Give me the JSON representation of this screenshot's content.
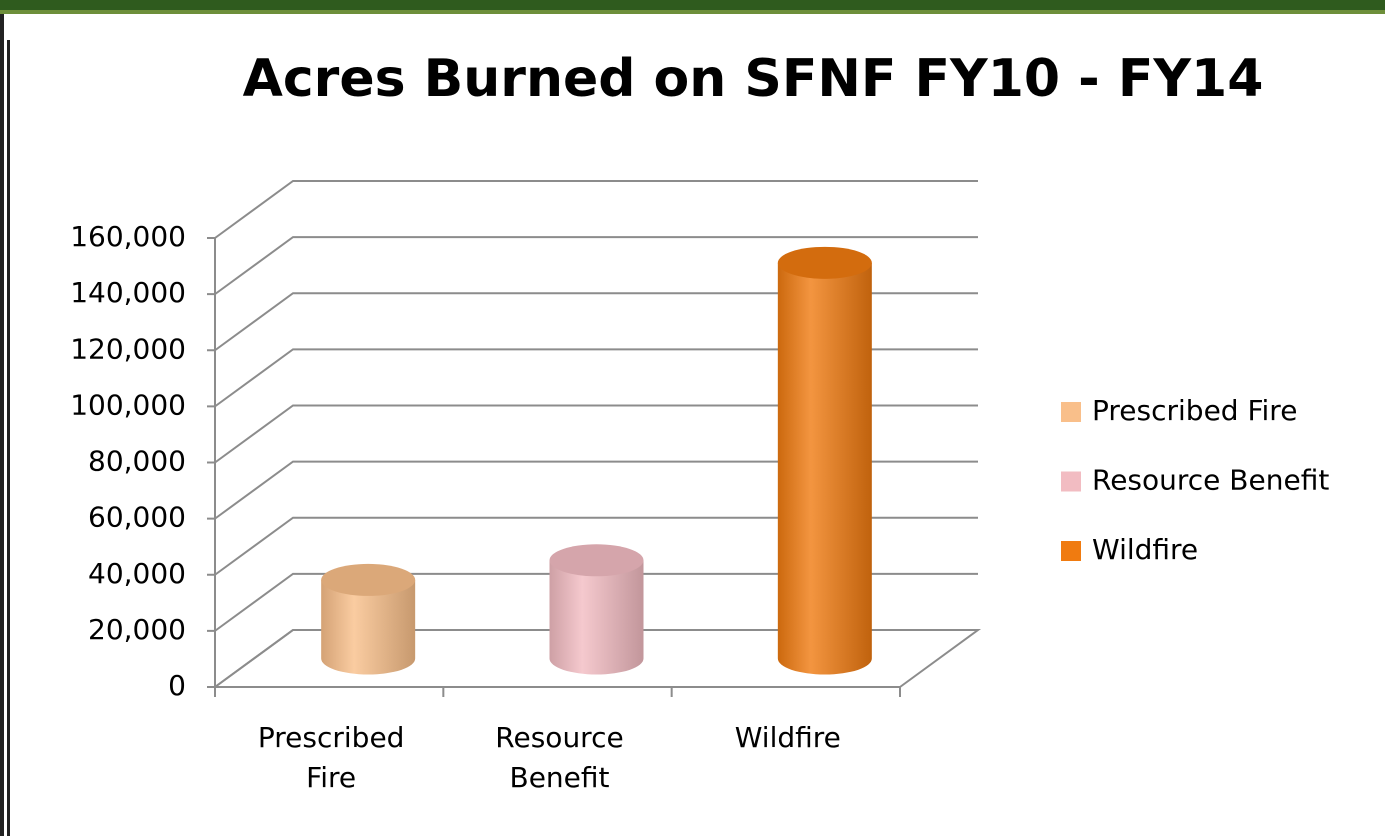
{
  "chart_data": {
    "type": "bar3d",
    "title": "Acres Burned on SFNF FY10 - FY14",
    "categories": [
      "Prescribed Fire",
      "Resource Benefit",
      "Wildfire"
    ],
    "values": [
      28000,
      35000,
      141000
    ],
    "colors": [
      "#f9bf8a",
      "#f2bcc2",
      "#f07b10"
    ],
    "ylim": [
      0,
      160000
    ],
    "yticks": [
      0,
      {
        "value": 20000,
        "label": "20,000"
      },
      {
        "value": 40000,
        "label": "40,000"
      },
      {
        "value": 60000,
        "label": "60,000"
      },
      {
        "value": 80000,
        "label": "80,000"
      },
      {
        "value": 100000,
        "label": "100,000"
      },
      {
        "value": 120000,
        "label": "120,000"
      },
      {
        "value": 140000,
        "label": "140,000"
      },
      {
        "value": 160000,
        "label": "160,000"
      }
    ],
    "grid": true,
    "legend": "right"
  }
}
